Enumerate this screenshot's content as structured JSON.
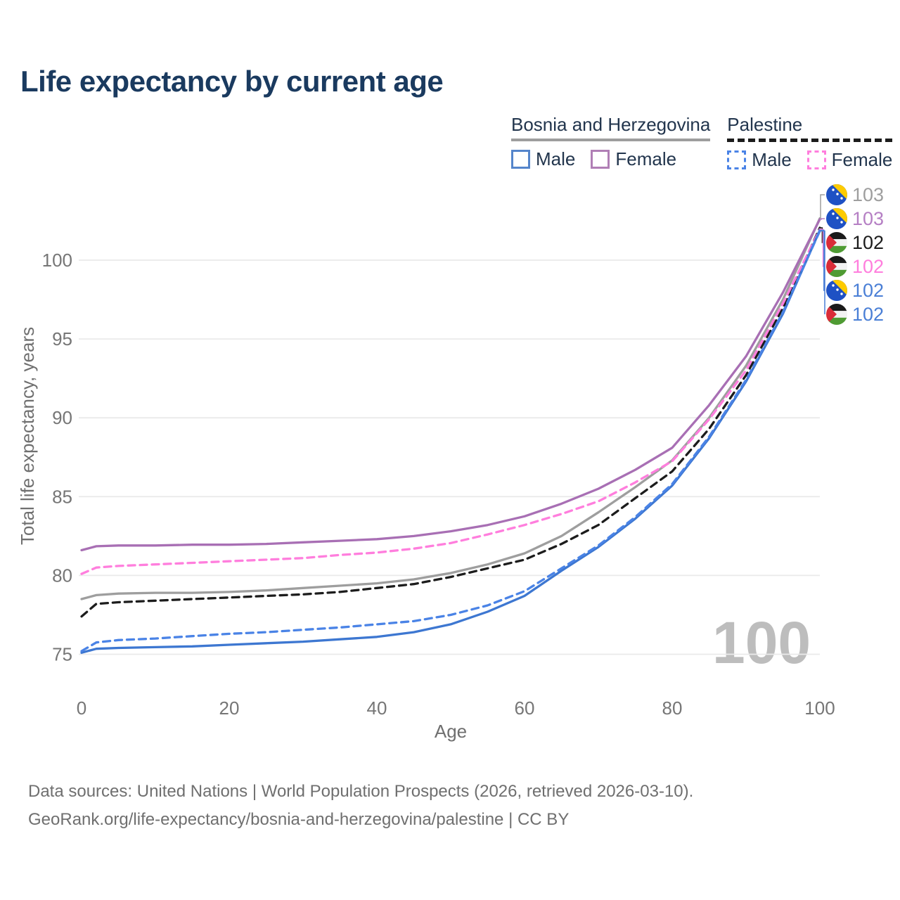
{
  "title": "Life expectancy by current age",
  "legend": {
    "groups": [
      {
        "name": "Bosnia and Herzegovina",
        "line_style": "solid",
        "underline_color": "#9e9e9e",
        "items": [
          {
            "label": "Male",
            "color": "#5585cb",
            "style": "solid"
          },
          {
            "label": "Female",
            "color": "#b07fb5",
            "style": "solid"
          }
        ]
      },
      {
        "name": "Palestine",
        "line_style": "dashed",
        "underline_color": "#1c1c1c",
        "items": [
          {
            "label": "Male",
            "color": "#4a83e6",
            "style": "dashed"
          },
          {
            "label": "Female",
            "color": "#ff7edd",
            "style": "dashed"
          }
        ]
      }
    ]
  },
  "chart_data": {
    "type": "line",
    "xlabel": "Age",
    "ylabel": "Total life expectancy, years",
    "x_ticks": [
      0,
      20,
      40,
      60,
      80,
      100
    ],
    "y_ticks": [
      75,
      80,
      85,
      90,
      95,
      100
    ],
    "xlim": [
      0,
      100
    ],
    "ylim": [
      74,
      103.5
    ],
    "grid": "horizontal",
    "watermark": "100",
    "ages": [
      0,
      2,
      5,
      10,
      15,
      20,
      25,
      30,
      35,
      40,
      45,
      50,
      55,
      60,
      65,
      70,
      75,
      80,
      85,
      90,
      95,
      100
    ],
    "series": [
      {
        "id": "bih_total",
        "name": "Bosnia and Herzegovina - Total",
        "style": "solid",
        "color": "#9e9e9e",
        "values": [
          78.5,
          78.75,
          78.85,
          78.9,
          78.9,
          78.95,
          79.05,
          79.2,
          79.35,
          79.5,
          79.75,
          80.15,
          80.7,
          81.4,
          82.5,
          84.0,
          85.6,
          87.3,
          90.0,
          93.3,
          97.5,
          102.65
        ]
      },
      {
        "id": "pse_total",
        "name": "Palestine - Total",
        "style": "dashed",
        "color": "#1c1c1c",
        "values": [
          77.4,
          78.2,
          78.3,
          78.4,
          78.5,
          78.6,
          78.7,
          78.8,
          78.95,
          79.2,
          79.45,
          79.9,
          80.45,
          81.0,
          82.0,
          83.2,
          84.9,
          86.6,
          89.3,
          92.7,
          96.95,
          102.05
        ]
      },
      {
        "id": "pse_female",
        "name": "Palestine - Female",
        "style": "dashed",
        "color": "#ff7edd",
        "values": [
          80.1,
          80.5,
          80.6,
          80.7,
          80.8,
          80.9,
          81.0,
          81.1,
          81.3,
          81.45,
          81.7,
          82.05,
          82.6,
          83.2,
          83.9,
          84.7,
          85.9,
          87.25,
          89.9,
          93.0,
          97.25,
          101.95
        ]
      },
      {
        "id": "bih_female",
        "name": "Bosnia and Herzegovina - Female",
        "style": "solid",
        "color": "#a86fb4",
        "values": [
          81.6,
          81.85,
          81.9,
          81.9,
          81.95,
          81.95,
          82.0,
          82.1,
          82.2,
          82.3,
          82.5,
          82.8,
          83.2,
          83.75,
          84.55,
          85.5,
          86.7,
          88.1,
          90.8,
          93.9,
          97.95,
          102.6
        ]
      },
      {
        "id": "bih_male",
        "name": "Bosnia and Herzegovina - Male",
        "style": "solid",
        "color": "#3d77d1",
        "values": [
          75.1,
          75.35,
          75.4,
          75.45,
          75.5,
          75.6,
          75.7,
          75.8,
          75.95,
          76.1,
          76.4,
          76.9,
          77.7,
          78.7,
          80.3,
          81.8,
          83.6,
          85.7,
          88.7,
          92.3,
          96.6,
          101.9
        ]
      },
      {
        "id": "pse_male",
        "name": "Palestine - Male",
        "style": "dashed",
        "color": "#4a83e6",
        "values": [
          75.2,
          75.75,
          75.9,
          76.0,
          76.15,
          76.3,
          76.4,
          76.55,
          76.7,
          76.9,
          77.1,
          77.5,
          78.1,
          79.0,
          80.45,
          81.9,
          83.7,
          85.8,
          88.8,
          92.4,
          96.7,
          101.85
        ]
      }
    ],
    "end_labels": [
      {
        "series": "bih_total",
        "flag": "bih",
        "value": "103",
        "color": "#9e9e9e"
      },
      {
        "series": "bih_female",
        "flag": "bih",
        "value": "103",
        "color": "#b57fc4"
      },
      {
        "series": "pse_total",
        "flag": "pse",
        "value": "102",
        "color": "#1c1c1c"
      },
      {
        "series": "pse_female",
        "flag": "pse",
        "value": "102",
        "color": "#ff7edd"
      },
      {
        "series": "bih_male",
        "flag": "bih",
        "value": "102",
        "color": "#4a7fd6"
      },
      {
        "series": "pse_male",
        "flag": "pse",
        "value": "102",
        "color": "#4a7fd6"
      }
    ]
  },
  "footer": {
    "line1": "Data sources: United Nations | World Population Prospects (2026, retrieved 2026-03-10).",
    "line2": "GeoRank.org/life-expectancy/bosnia-and-herzegovina/palestine | CC BY"
  }
}
